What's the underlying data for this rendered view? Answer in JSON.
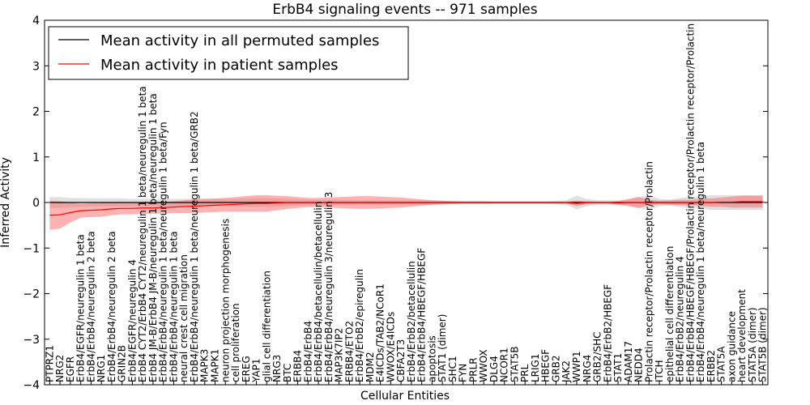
{
  "chart_data": {
    "type": "line",
    "title": "ErbB4 signaling events -- 971 samples",
    "xlabel": "Cellular Entities",
    "ylabel": "Inferred Activity",
    "ylim": [
      -4,
      4
    ],
    "yticks": [
      -4,
      -3,
      -2,
      -1,
      0,
      1,
      2,
      3,
      4
    ],
    "grid": false,
    "legend_position": "top-left",
    "colors": {
      "permuted": "#000000",
      "patient": "#ff0000",
      "permuted_band": "#bbbbbb",
      "patient_band": "#ff5555"
    },
    "categories": [
      "PTPRZ1",
      "NRG2",
      "EGFR",
      "ErbB4/EGFR/neuregulin 1 beta",
      "ErbB4/ErbB4/neuregulin 2 beta",
      "NRG1",
      "ErbB4/ErbB4/neuregulin 2 beta",
      "GRIN2B",
      "ErbB4/EGFR/neuregulin 4",
      "ErbB4 CYT2/ErbB4 CYT2/neuregulin 1 beta/neuregulin 1 beta",
      "ErbB4 JM-B/ErbB4 JM-B/neuregulin 1 beta/neuregulin 1 beta",
      "ErbB4/ErbB4/neuregulin 1 beta/neuregulin 1 beta/Fyn",
      "ErbB4/ErbB4/neuregulin 1 beta",
      "neural crest cell migration",
      "ErbB4/ErbB4/neuregulin 1 beta/neuregulin 1 beta/GRB2",
      "MAPK3",
      "MAPK1",
      "neuron projection morphogenesis",
      "cell proliferation",
      "EREG",
      "YAP1",
      "glial cell differentiation",
      "NRG3",
      "BTC",
      "ERBB4",
      "ErbB4/ErbB4",
      "ErbB4/ErbB4/betacellulin/betacellulin",
      "ErbB4/ErbB4/neuregulin 3/neuregulin 3",
      "MAP3K7IP2",
      "ERBB4/ETO2",
      "ErbB4/ErbB2/epiregulin",
      "MDM2",
      "E4ICDs/TAB2/NCoR1",
      "WWOX/E4ICDs",
      "CBFA2T3",
      "ErbB4/ErbB2/betacellulin",
      "ErbB4/ErbB4/HBEGF/HBEGF",
      "apoptosis",
      "STAT1 (dimer)",
      "SHC1",
      "FYN",
      "PRLR",
      "WWOX",
      "DLG4",
      "NCOR1",
      "STAT5B",
      "PRL",
      "LRIG1",
      "HBEGF",
      "GRB2",
      "JAK2",
      "WWP1",
      "NRG4",
      "GRB2/SHC",
      "ErbB4/ErbB2/HBEGF",
      "STAT1",
      "ADAM17",
      "NEDD4",
      "Prolactin receptor/Prolactin receptor/Prolactin",
      "ITCH",
      "epithelial cell differentiation",
      "ErbB4/ErbB2/neuregulin 4",
      "ErbB4/ErbB4/HBEGF/HBEGF/Prolactin receptor/Prolactin receptor/Prolactin",
      "ErbB4/ErbB4/neuregulin 1 beta/neuregulin 1 beta",
      "ERBB2",
      "STAT5A",
      "axon guidance",
      "heart development",
      "STAT5A (dimer)",
      "STAT5B (dimer)"
    ],
    "series": [
      {
        "name": "Mean activity in all permuted samples",
        "color": "#000000",
        "values": [
          0,
          0,
          0,
          0,
          0,
          0,
          0,
          0,
          0,
          0,
          0,
          0,
          0,
          0,
          0,
          0,
          0,
          0,
          0,
          0,
          0,
          0,
          0,
          0,
          0,
          0,
          0,
          0,
          0,
          0,
          0,
          0,
          0,
          0,
          0,
          0,
          0,
          0,
          0,
          0,
          0,
          0,
          0,
          0,
          0,
          0,
          0,
          0,
          0,
          0,
          0,
          0,
          0,
          0,
          0,
          0,
          0,
          0,
          0,
          0,
          0,
          0,
          0,
          0,
          0,
          0,
          0,
          0,
          0,
          0
        ],
        "band": [
          0.12,
          0.12,
          0.1,
          0.1,
          0.09,
          0.09,
          0.09,
          0.09,
          0.08,
          0.08,
          0.08,
          0.08,
          0.08,
          0.08,
          0.08,
          0.08,
          0.08,
          0.08,
          0.08,
          0.09,
          0.1,
          0.1,
          0.09,
          0.08,
          0.07,
          0.06,
          0.06,
          0.06,
          0.06,
          0.06,
          0.05,
          0.05,
          0.05,
          0.05,
          0.05,
          0.05,
          0.05,
          0.05,
          0.04,
          0.04,
          0.04,
          0.04,
          0.04,
          0.03,
          0.03,
          0.03,
          0.03,
          0.03,
          0.03,
          0.04,
          0.05,
          0.15,
          0.08,
          0.05,
          0.05,
          0.05,
          0.06,
          0.12,
          0.16,
          0.08,
          0.06,
          0.1,
          0.12,
          0.14,
          0.16,
          0.16,
          0.16,
          0.16,
          0.16,
          0.16
        ]
      },
      {
        "name": "Mean activity in patient samples",
        "color": "#ff0000",
        "values": [
          -0.28,
          -0.27,
          -0.22,
          -0.18,
          -0.17,
          -0.16,
          -0.14,
          -0.13,
          -0.13,
          -0.12,
          -0.12,
          -0.11,
          -0.1,
          -0.09,
          -0.08,
          -0.07,
          -0.06,
          -0.05,
          -0.04,
          -0.03,
          -0.02,
          -0.02,
          -0.01,
          0,
          0,
          0,
          0,
          0,
          0,
          0,
          0,
          0,
          0,
          0,
          0,
          0,
          0,
          0,
          0,
          0,
          0,
          0,
          0,
          0,
          0,
          0,
          0,
          0,
          0,
          0,
          0,
          -0.02,
          0,
          0,
          0,
          -0.01,
          0,
          0,
          0,
          0,
          0,
          0,
          0,
          0,
          0,
          0.01,
          0.01,
          0.02,
          0.02,
          0.02
        ],
        "band": [
          0.32,
          0.3,
          0.22,
          0.15,
          0.15,
          0.15,
          0.14,
          0.13,
          0.13,
          0.13,
          0.13,
          0.13,
          0.13,
          0.14,
          0.15,
          0.15,
          0.15,
          0.15,
          0.16,
          0.17,
          0.18,
          0.18,
          0.16,
          0.14,
          0.12,
          0.1,
          0.1,
          0.11,
          0.12,
          0.13,
          0.14,
          0.14,
          0.13,
          0.12,
          0.11,
          0.09,
          0.07,
          0.05,
          0.04,
          0.03,
          0.02,
          0.02,
          0.02,
          0.02,
          0.02,
          0.02,
          0.02,
          0.02,
          0.02,
          0.02,
          0.02,
          0.06,
          0.03,
          0.02,
          0.02,
          0.04,
          0.08,
          0.12,
          0.06,
          0.04,
          0.05,
          0.06,
          0.06,
          0.08,
          0.09,
          0.1,
          0.12,
          0.13,
          0.13,
          0.13
        ]
      }
    ]
  }
}
